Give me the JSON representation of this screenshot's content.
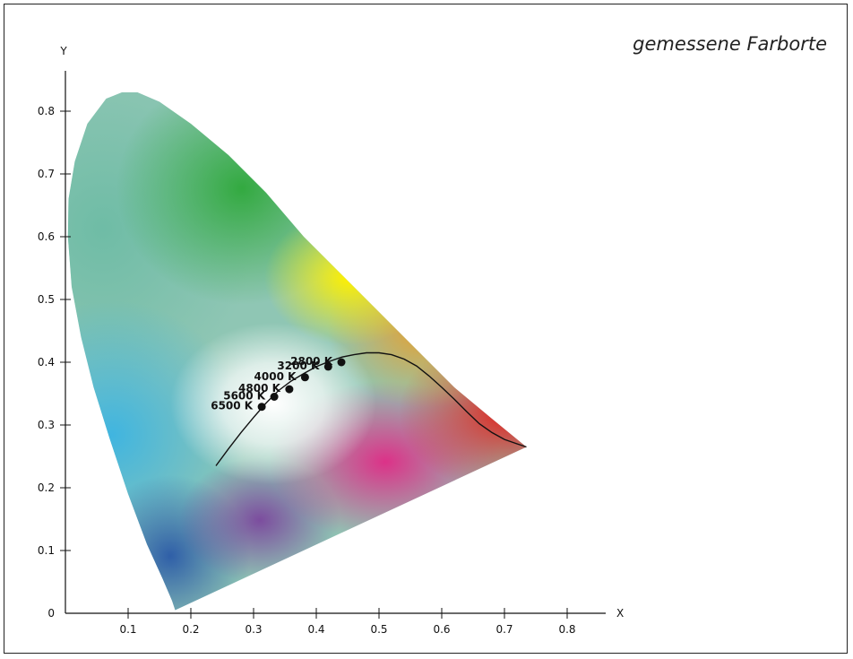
{
  "caption": "gemessene Farborte",
  "chart_data": {
    "type": "scatter",
    "xlabel": "X",
    "ylabel": "Y",
    "xlim": [
      0,
      0.85
    ],
    "ylim": [
      0,
      0.85
    ],
    "x_ticks": [
      0.1,
      0.2,
      0.3,
      0.4,
      0.5,
      0.6,
      0.7,
      0.8
    ],
    "y_ticks": [
      0.1,
      0.2,
      0.3,
      0.4,
      0.5,
      0.6,
      0.7,
      0.8
    ],
    "origin_label": "0",
    "grid": false,
    "spectral_locus": [
      [
        0.175,
        0.005
      ],
      [
        0.17,
        0.02
      ],
      [
        0.155,
        0.055
      ],
      [
        0.13,
        0.11
      ],
      [
        0.1,
        0.19
      ],
      [
        0.07,
        0.28
      ],
      [
        0.045,
        0.36
      ],
      [
        0.025,
        0.44
      ],
      [
        0.01,
        0.52
      ],
      [
        0.004,
        0.6
      ],
      [
        0.005,
        0.66
      ],
      [
        0.015,
        0.72
      ],
      [
        0.035,
        0.78
      ],
      [
        0.065,
        0.82
      ],
      [
        0.09,
        0.83
      ],
      [
        0.115,
        0.83
      ],
      [
        0.15,
        0.815
      ],
      [
        0.2,
        0.78
      ],
      [
        0.26,
        0.73
      ],
      [
        0.32,
        0.67
      ],
      [
        0.38,
        0.6
      ],
      [
        0.44,
        0.54
      ],
      [
        0.5,
        0.48
      ],
      [
        0.56,
        0.42
      ],
      [
        0.62,
        0.36
      ],
      [
        0.68,
        0.31
      ],
      [
        0.735,
        0.265
      ]
    ],
    "planckian_locus": [
      [
        0.24,
        0.235
      ],
      [
        0.26,
        0.262
      ],
      [
        0.28,
        0.288
      ],
      [
        0.3,
        0.312
      ],
      [
        0.32,
        0.335
      ],
      [
        0.34,
        0.355
      ],
      [
        0.36,
        0.37
      ],
      [
        0.38,
        0.382
      ],
      [
        0.4,
        0.393
      ],
      [
        0.42,
        0.401
      ],
      [
        0.44,
        0.408
      ],
      [
        0.46,
        0.412
      ],
      [
        0.48,
        0.415
      ],
      [
        0.5,
        0.415
      ],
      [
        0.52,
        0.412
      ],
      [
        0.54,
        0.405
      ],
      [
        0.56,
        0.394
      ],
      [
        0.58,
        0.378
      ],
      [
        0.6,
        0.36
      ],
      [
        0.62,
        0.341
      ],
      [
        0.64,
        0.321
      ],
      [
        0.66,
        0.302
      ],
      [
        0.68,
        0.288
      ],
      [
        0.7,
        0.277
      ],
      [
        0.72,
        0.27
      ],
      [
        0.735,
        0.265
      ]
    ],
    "points": [
      {
        "label": "6500 K",
        "x": 0.313,
        "y": 0.329
      },
      {
        "label": "5600 K",
        "x": 0.333,
        "y": 0.345
      },
      {
        "label": "4800 K",
        "x": 0.357,
        "y": 0.357
      },
      {
        "label": "4000 K",
        "x": 0.382,
        "y": 0.376
      },
      {
        "label": "3200 K",
        "x": 0.419,
        "y": 0.393
      },
      {
        "label": "2800 K",
        "x": 0.44,
        "y": 0.4
      }
    ]
  }
}
